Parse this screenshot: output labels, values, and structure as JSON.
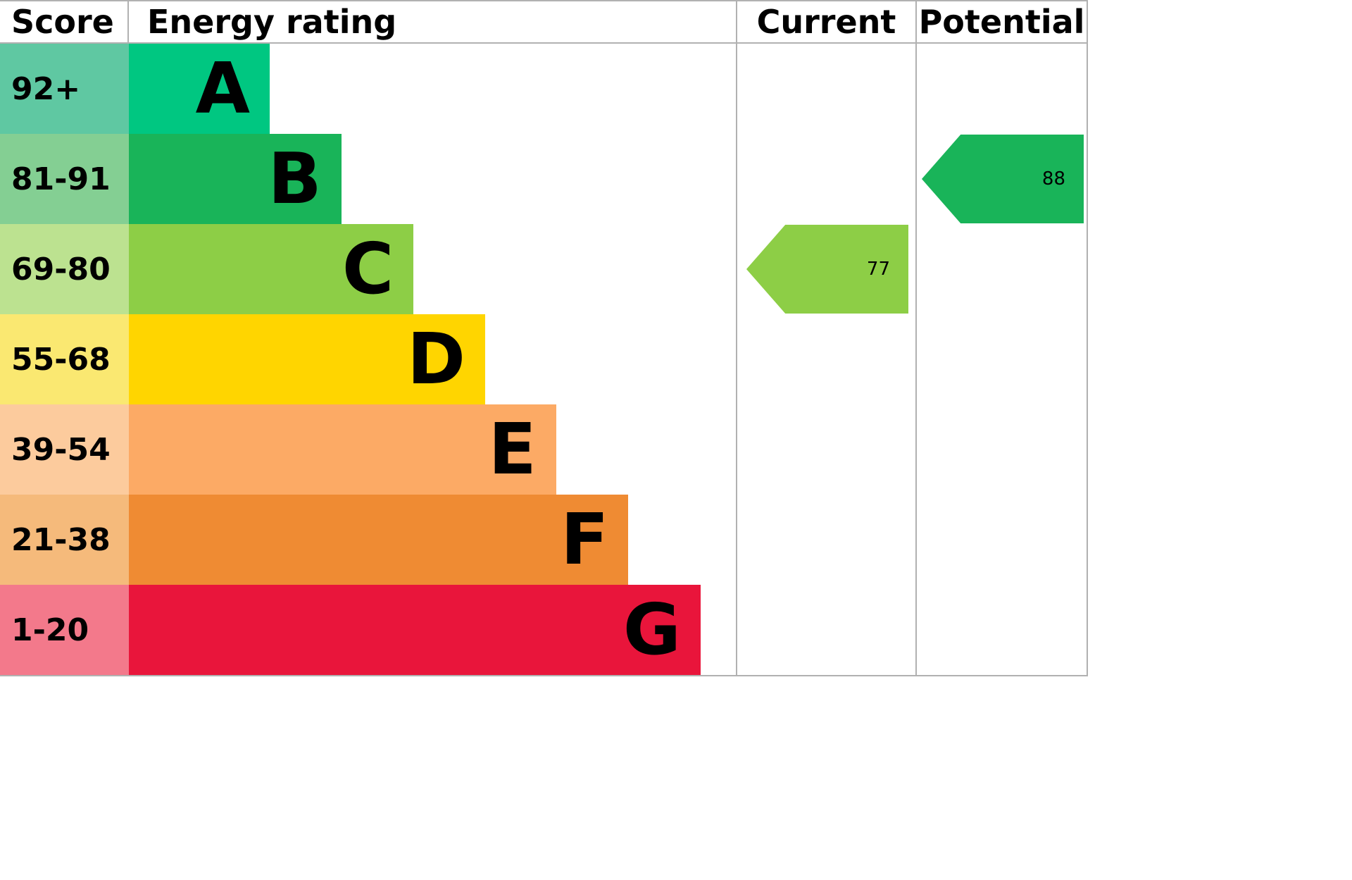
{
  "header": {
    "score": "Score",
    "energy_rating": "Energy rating",
    "current": "Current",
    "potential": "Potential"
  },
  "bands": [
    {
      "score": "92+",
      "letter": "A",
      "color": "#00c781",
      "score_color": "#5fc8a2",
      "bar_width": "23.2%"
    },
    {
      "score": "81-91",
      "letter": "B",
      "color": "#19b459",
      "score_color": "#84cf93",
      "bar_width": "35.0%"
    },
    {
      "score": "69-80",
      "letter": "C",
      "color": "#8dce46",
      "score_color": "#bce290",
      "bar_width": "46.9%"
    },
    {
      "score": "55-68",
      "letter": "D",
      "color": "#ffd500",
      "score_color": "#fae871",
      "bar_width": "58.7%"
    },
    {
      "score": "39-54",
      "letter": "E",
      "color": "#fcaa65",
      "score_color": "#fccb9d",
      "bar_width": "70.4%"
    },
    {
      "score": "21-38",
      "letter": "F",
      "color": "#ef8b33",
      "score_color": "#f5ba7b",
      "bar_width": "82.3%"
    },
    {
      "score": "1-20",
      "letter": "G",
      "color": "#e9153b",
      "score_color": "#f3798b",
      "bar_width": "94.2%"
    }
  ],
  "current": {
    "value": "77",
    "band": "C",
    "color": "#8dce46"
  },
  "potential": {
    "value": "88",
    "band": "B",
    "color": "#19b459"
  },
  "chart_data": {
    "type": "bar",
    "title": "Energy rating (EPC band chart)",
    "categories": [
      "A",
      "B",
      "C",
      "D",
      "E",
      "F",
      "G"
    ],
    "score_ranges": [
      "92+",
      "81-91",
      "69-80",
      "55-68",
      "39-54",
      "21-38",
      "1-20"
    ],
    "columns": [
      "Score",
      "Energy rating",
      "Current",
      "Potential"
    ],
    "bar_lengths_relative": [
      1.0,
      1.51,
      2.02,
      2.53,
      3.04,
      3.55,
      4.06
    ],
    "current": {
      "value": 77,
      "band": "C"
    },
    "potential": {
      "value": 88,
      "band": "B"
    },
    "band_colors": {
      "A": "#00c781",
      "B": "#19b459",
      "C": "#8dce46",
      "D": "#ffd500",
      "E": "#fcaa65",
      "F": "#ef8b33",
      "G": "#e9153b"
    },
    "legend_position": "none",
    "grid": false
  }
}
